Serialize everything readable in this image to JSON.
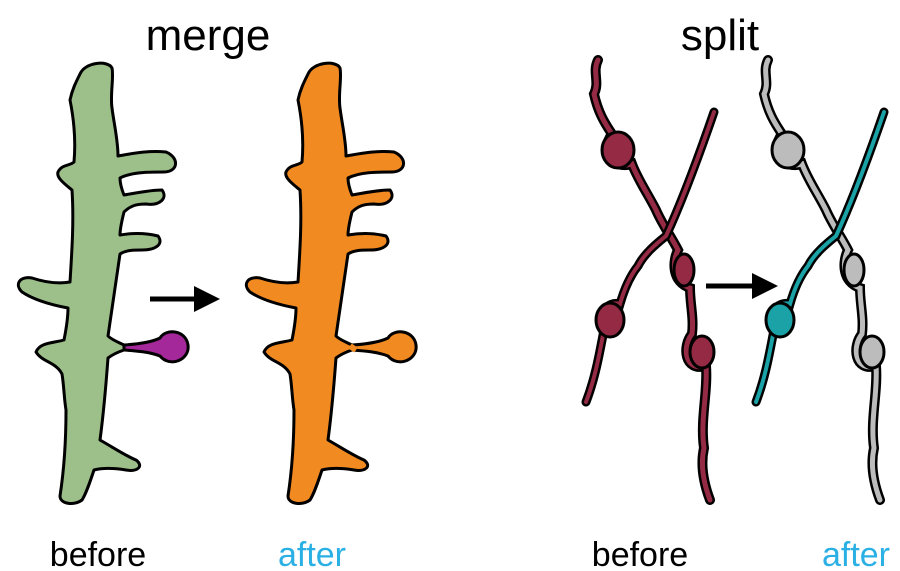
{
  "panels": {
    "merge": {
      "title": "merge",
      "before_label": "before",
      "after_label": "after",
      "before_fill": "#9dbf8a",
      "spine_fill": "#a4289a",
      "after_fill": "#f28a22"
    },
    "split": {
      "title": "split",
      "before_label": "before",
      "after_label": "after",
      "before_fill": "#952a44",
      "after_fill_a": "#1aa2a6",
      "after_fill_b": "#bcbcbc"
    }
  },
  "colors": {
    "outline": "#000000",
    "before_text": "#000000",
    "after_text": "#2ab0e4",
    "arrow": "#000000"
  },
  "icons": [
    "arrow-right-icon",
    "arrow-right-icon"
  ]
}
